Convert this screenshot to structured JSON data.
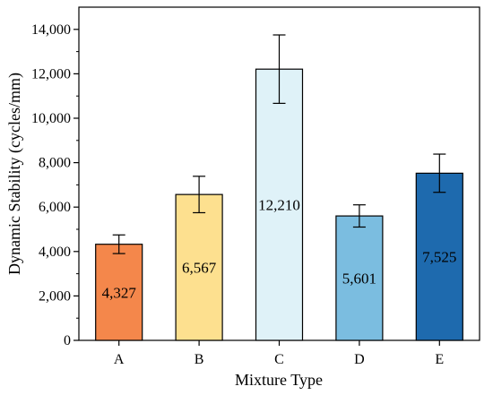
{
  "chart_data": {
    "type": "bar",
    "title": "",
    "xlabel": "Mixture Type",
    "ylabel": "Dynamic Stability (cycles/mm)",
    "categories": [
      "A",
      "B",
      "C",
      "D",
      "E"
    ],
    "values": [
      4327,
      6567,
      12210,
      5601,
      7525
    ],
    "value_labels": [
      "4,327",
      "6,567",
      "12,210",
      "5,601",
      "7,525"
    ],
    "error_bars": [
      420,
      820,
      1540,
      500,
      860
    ],
    "bar_colors": [
      "#F4874B",
      "#FDE08F",
      "#DFF2F8",
      "#7BBDE0",
      "#1E6AAE"
    ],
    "ylim": [
      0,
      15000
    ],
    "yticks": [
      0,
      2000,
      4000,
      6000,
      8000,
      10000,
      12000,
      14000
    ],
    "ytick_labels": [
      "0",
      "2,000",
      "4,000",
      "6,000",
      "8,000",
      "10,000",
      "12,000",
      "14,000"
    ],
    "grid": false,
    "legend": "none"
  }
}
